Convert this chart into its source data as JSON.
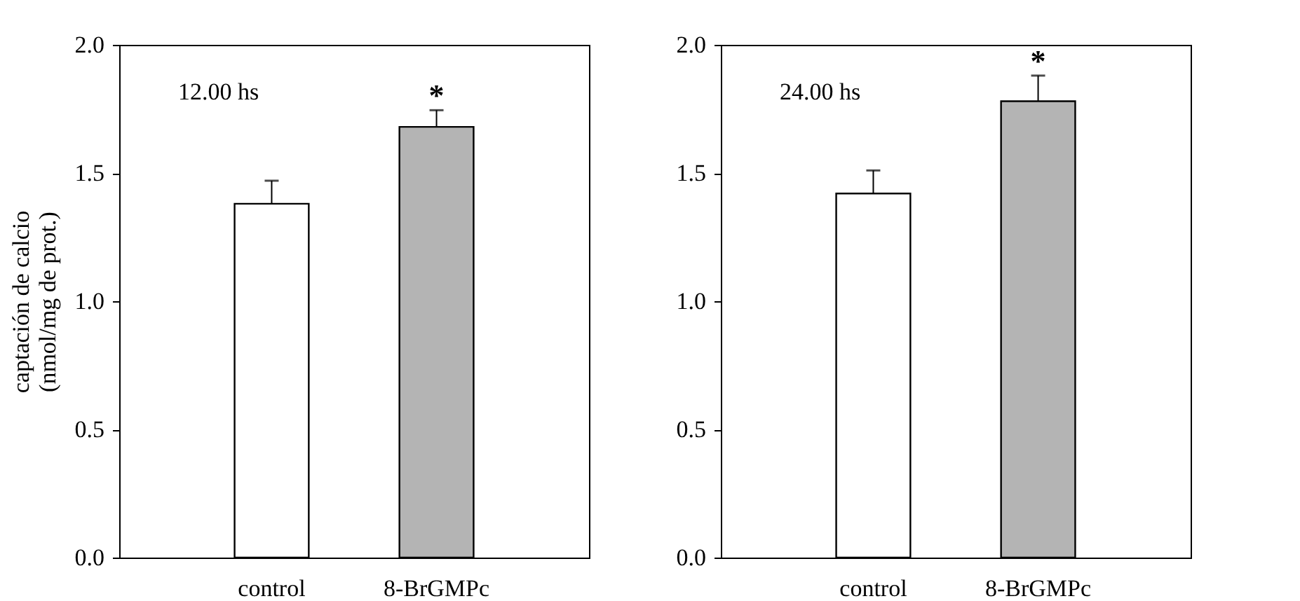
{
  "chart_data": [
    {
      "type": "bar",
      "ylabel": "captación de calcio\n(nmol/mg de prot.)",
      "categories": [
        "control",
        "8-BrGMPc"
      ],
      "values": [
        1.38,
        1.68
      ],
      "colors": [
        "#ffffff",
        "#b4b4b4"
      ],
      "errors": [
        [
          1.38,
          1.47
        ],
        [
          1.68,
          1.745
        ]
      ],
      "ylim": [
        0,
        2.0
      ],
      "yticks": [
        {
          "value": 0,
          "label": "0.0"
        },
        {
          "value": 0.5,
          "label": "0.5"
        },
        {
          "value": 1.0,
          "label": "1.0"
        },
        {
          "value": 1.5,
          "label": "1.5"
        },
        {
          "value": 2.0,
          "label": "2.0"
        }
      ],
      "grid": false,
      "annotations": [
        "12.00 hs",
        {
          "text": "*",
          "x": "8-BrGMPc",
          "y": 1.745
        }
      ]
    },
    {
      "type": "bar",
      "categories": [
        "control",
        "8-BrGMPc"
      ],
      "values": [
        1.42,
        1.78
      ],
      "colors": [
        "#ffffff",
        "#b4b4b4"
      ],
      "errors": [
        [
          1.42,
          1.51
        ],
        [
          1.78,
          1.88
        ]
      ],
      "ylim": [
        0,
        2.0
      ],
      "yticks": [
        {
          "value": 0,
          "label": "0.0"
        },
        {
          "value": 0.5,
          "label": "0.5"
        },
        {
          "value": 1.0,
          "label": "1.0"
        },
        {
          "value": 1.5,
          "label": "1.5"
        },
        {
          "value": 2.0,
          "label": "2.0"
        }
      ],
      "grid": false,
      "annotations": [
        "24.00 hs",
        {
          "text": "*",
          "x": "8-BrGMPc",
          "y": 1.88
        }
      ]
    }
  ]
}
